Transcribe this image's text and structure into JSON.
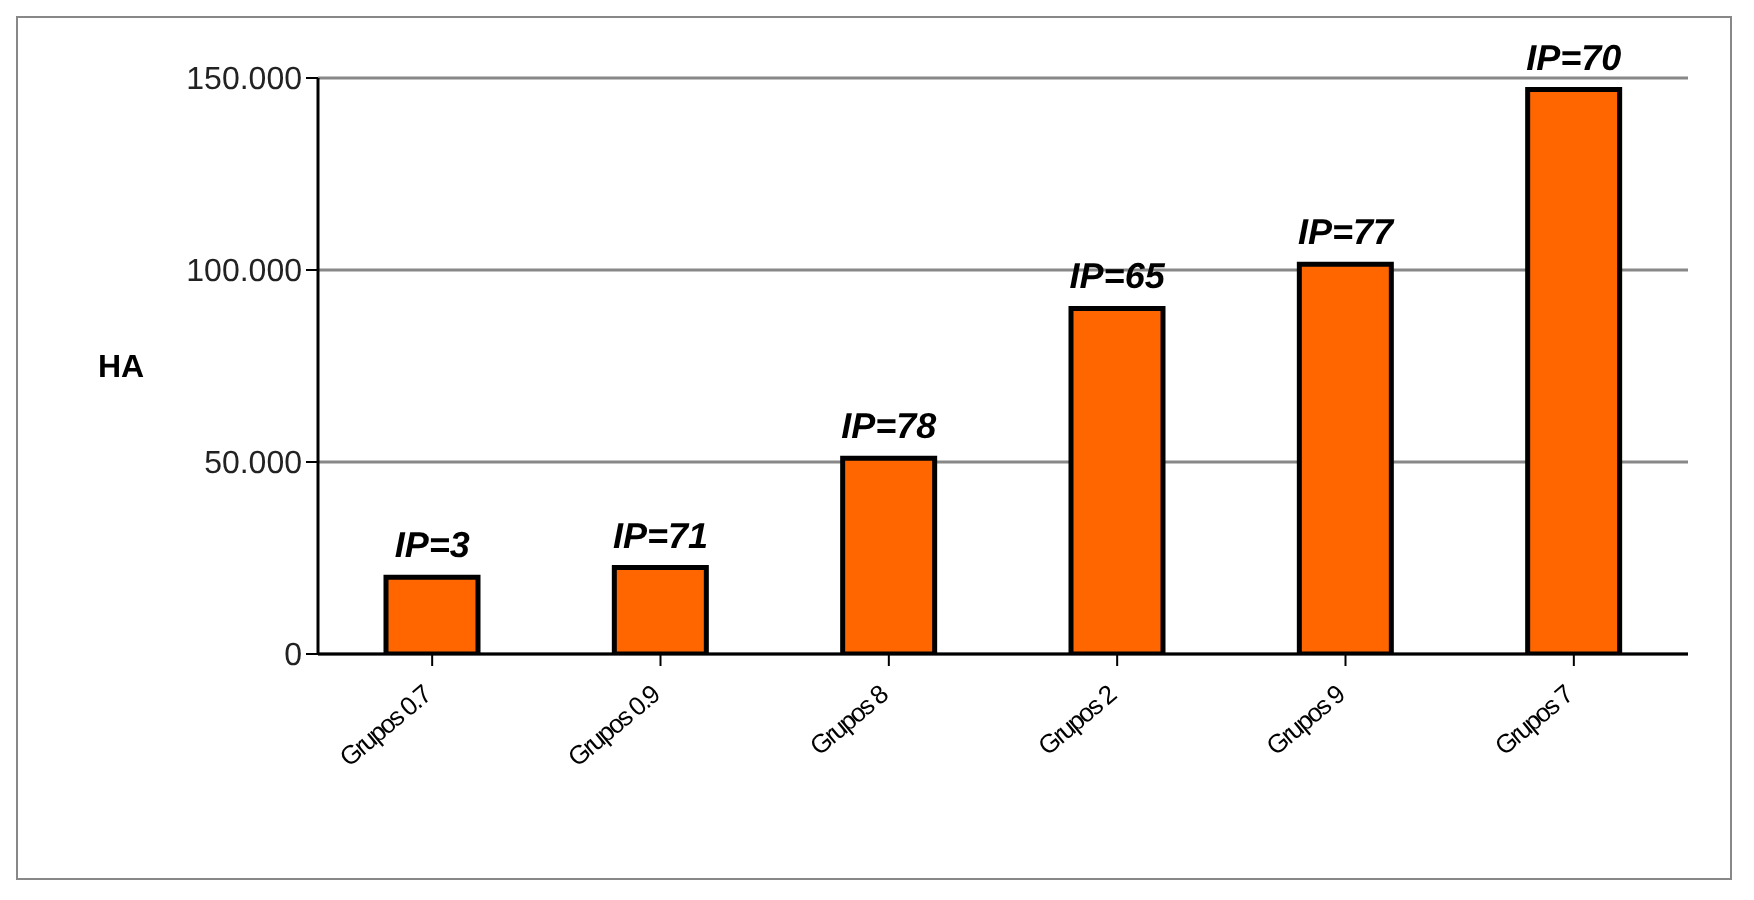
{
  "chart_data": {
    "type": "bar",
    "ylabel": "HA",
    "categories": [
      "Grupos 0.7",
      "Grupos 0.9",
      "Grupos 8",
      "Grupos 2",
      "Grupos 9",
      "Grupos 7"
    ],
    "values": [
      20,
      22.5,
      51,
      90,
      101.5,
      147
    ],
    "color": "#ff6600",
    "ylim": [
      0,
      150
    ],
    "yticks": [
      0,
      {
        "value": 50,
        "label": "50.000"
      },
      {
        "value": 100,
        "label": "100.000"
      },
      {
        "value": 150,
        "label": "150.000"
      }
    ],
    "grid": "y",
    "annotations": [
      {
        "text": "IP=3",
        "x": "Grupos 0.7",
        "y": 20
      },
      {
        "text": "IP=71",
        "x": "Grupos 0.9",
        "y": 22.5
      },
      {
        "text": "IP=78",
        "x": "Grupos 8",
        "y": 51
      },
      {
        "text": "IP=65",
        "x": "Grupos 2",
        "y": 90
      },
      {
        "text": "IP=77",
        "x": "Grupos 9",
        "y": 101.5
      },
      {
        "text": "IP=70",
        "x": "Grupos 7",
        "y": 147
      }
    ]
  }
}
